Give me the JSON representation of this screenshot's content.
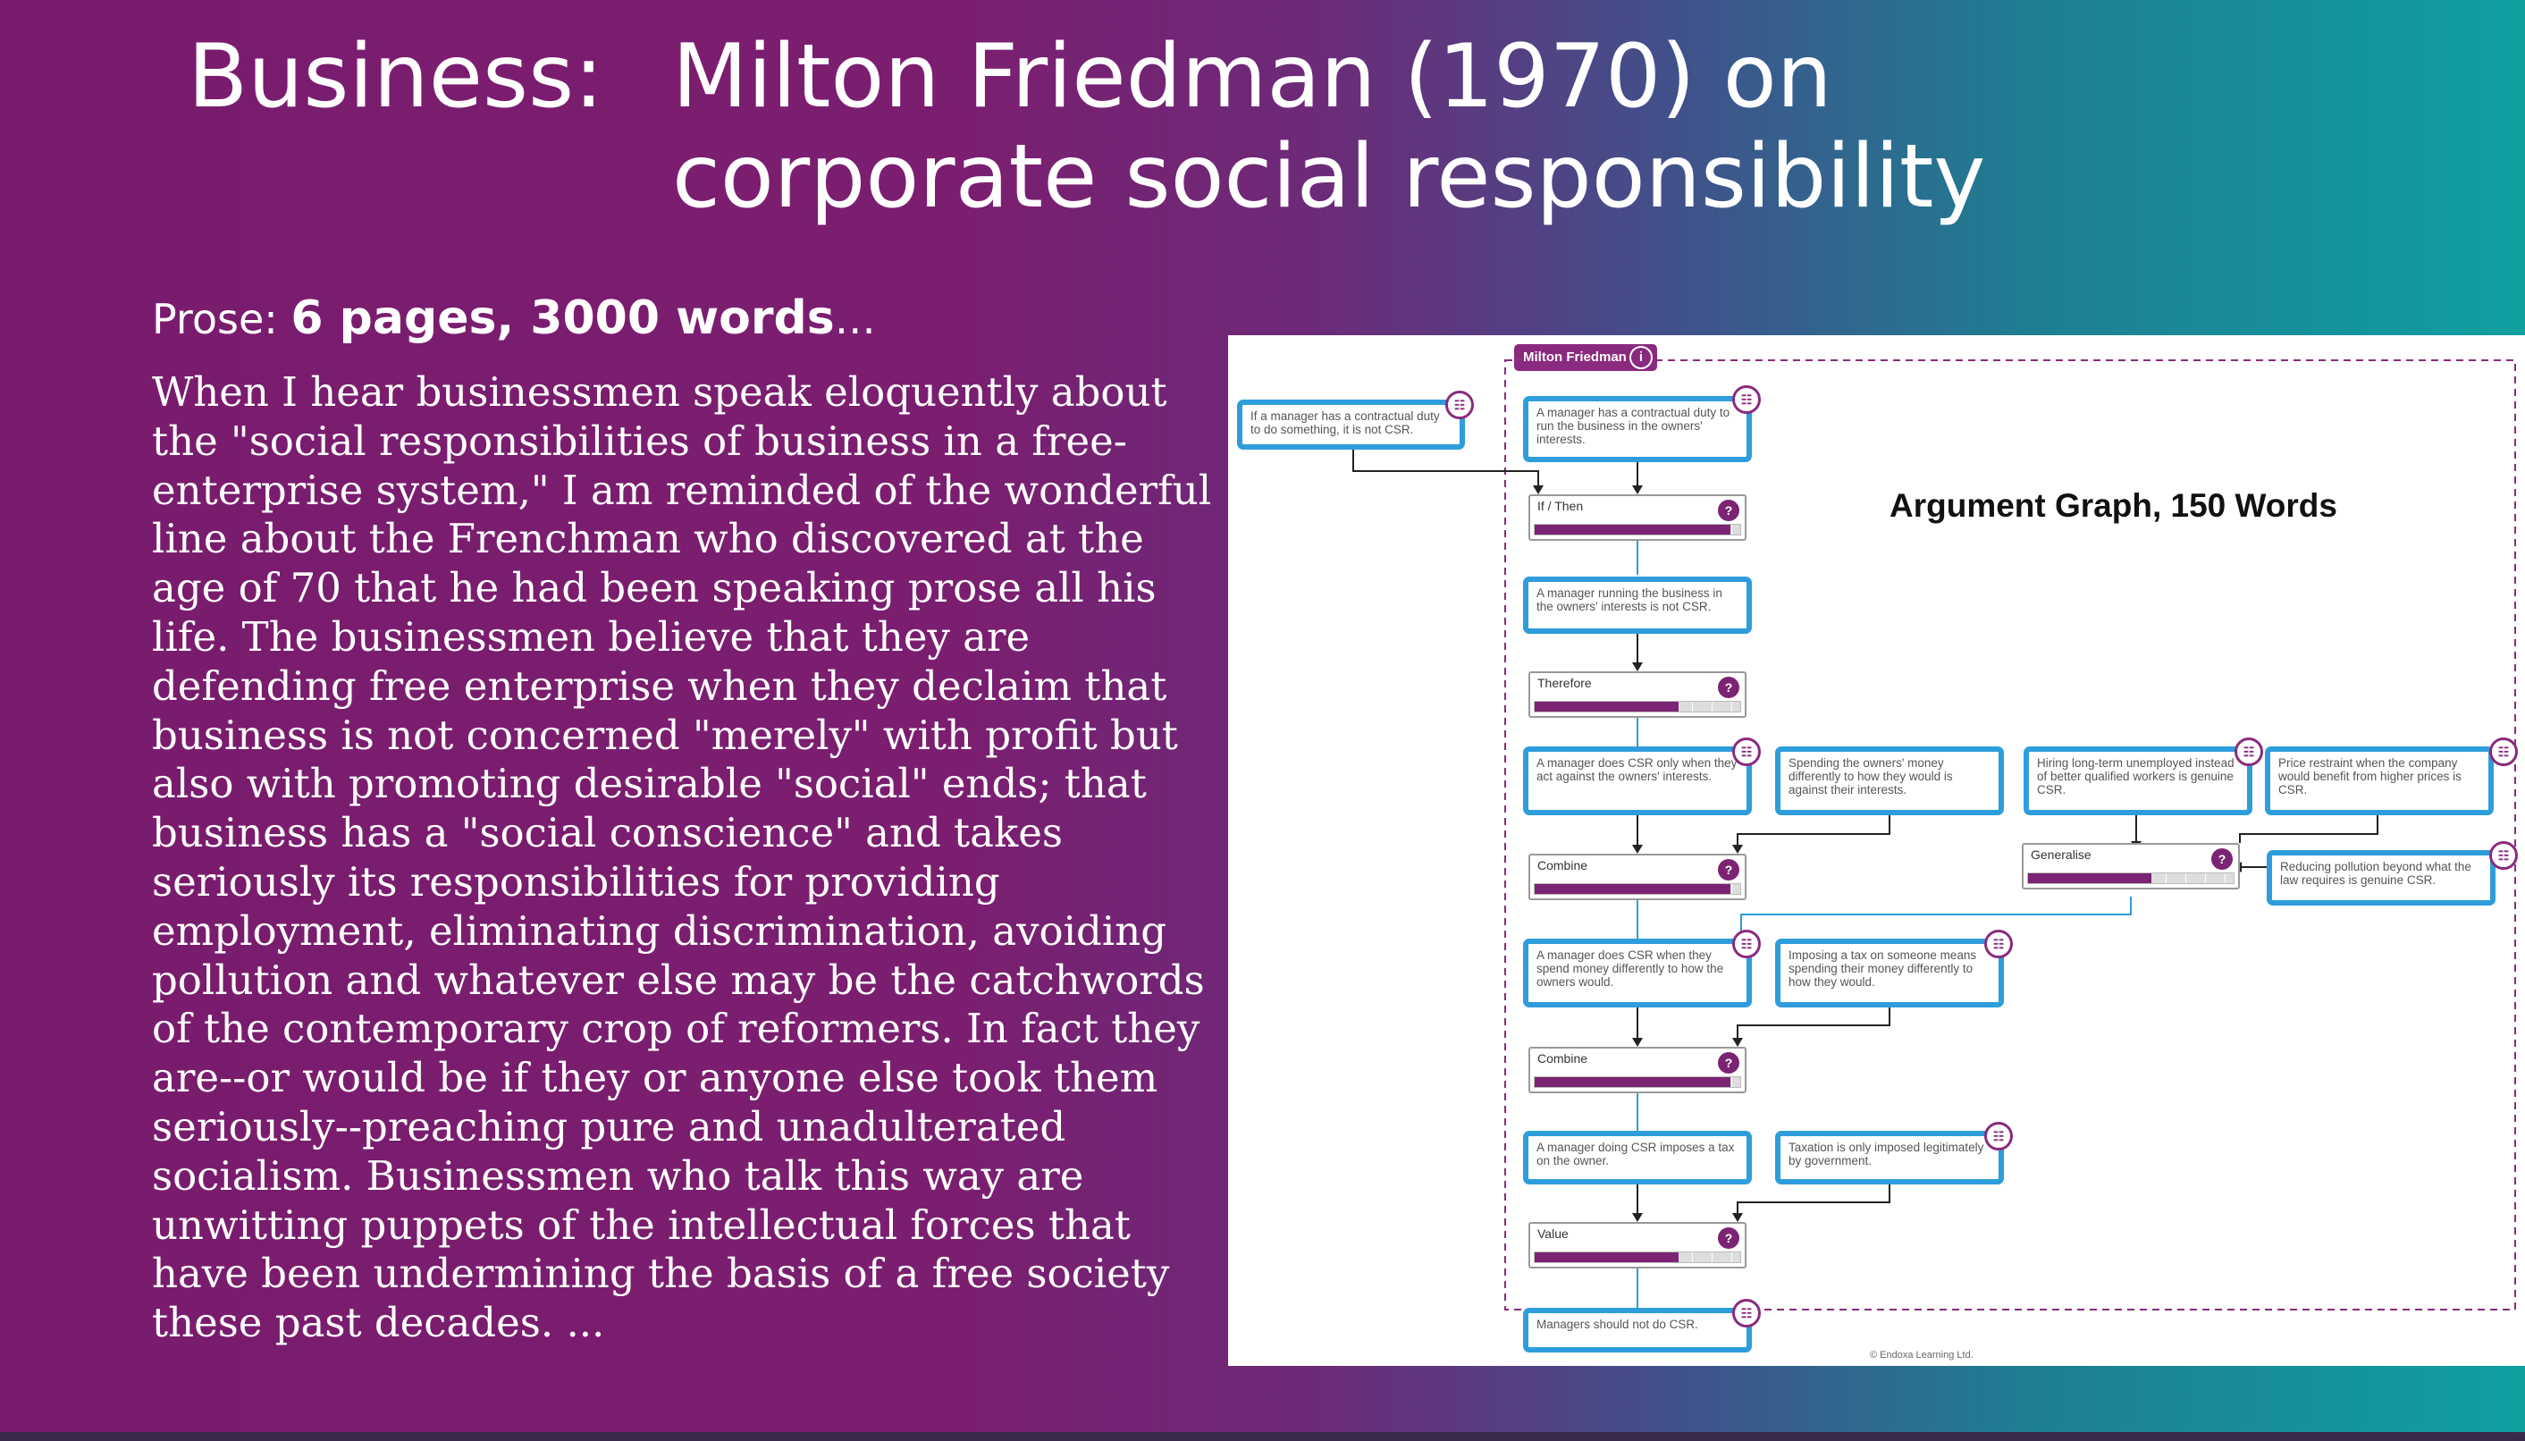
{
  "slide": {
    "title_prefix": "Business:",
    "title_line1": "Milton Friedman (1970) on",
    "title_line2": "corporate social responsibility",
    "prose_label": "Prose:",
    "prose_strong": "6 pages, 3000 words",
    "prose_ellipsis": "…",
    "prose_text": "When I hear businessmen speak eloquently about the \"social responsibilities of business in a free-enterprise system,\" I am reminded of the wonderful line about the Frenchman who discovered at the age of 70 that he had been speaking prose all his life. The businessmen believe that they are defending free enterprise when they declaim that business is not concerned \"merely\" with profit but also with promoting desirable \"social\" ends; that business has a \"social conscience\" and takes seriously its responsibilities for providing employment, eliminating discrimination, avoiding pollution and whatever else may be the catchwords of the contemporary crop of reformers. In fact they are--or would be if they or anyone else took them seriously--preaching pure and unadulterated socialism. Businessmen who talk this way are unwitting puppets of the intellectual forces that have been undermining the basis of a free society these past decades. ..."
  },
  "graph": {
    "title": "Argument Graph, 150 Words",
    "author": "Milton Friedman",
    "author_info_icon": "i",
    "claim_icon": "☷",
    "question_icon": "?",
    "copyright": "© Endoxa Learning Ltd.",
    "claims": {
      "c1": "If a manager has a contractual duty to do something, it is not CSR.",
      "c2": "A manager has a contractual duty to run the business in the owners' interests.",
      "c3": "A manager running the business in the owners' interests is not CSR.",
      "c4": "A manager does CSR only when they act against the owners' interests.",
      "c5": "Spending the owners' money differently to how they would is against their interests.",
      "c6": "Hiring long-term unemployed instead of better qualified workers is genuine CSR.",
      "c7": "Price restraint when the company would benefit from higher prices is CSR.",
      "c8": "Reducing pollution beyond what the law requires is genuine CSR.",
      "c9": "A manager does CSR when they spend money differently to how the owners would.",
      "c10": "Imposing a tax on someone means spending their money differently to how they would.",
      "c11": "A manager doing CSR imposes a tax on the owner.",
      "c12": "Taxation is only imposed legitimately by government.",
      "c13": "Managers should not do CSR."
    },
    "inferences": {
      "i1": {
        "label": "If / Then",
        "strength": 0.95
      },
      "i2": {
        "label": "Therefore",
        "strength": 0.7
      },
      "i3": {
        "label": "Combine",
        "strength": 0.95
      },
      "i4": {
        "label": "Generalise",
        "strength": 0.6
      },
      "i5": {
        "label": "Combine",
        "strength": 0.95
      },
      "i6": {
        "label": "Value",
        "strength": 0.7
      }
    }
  }
}
